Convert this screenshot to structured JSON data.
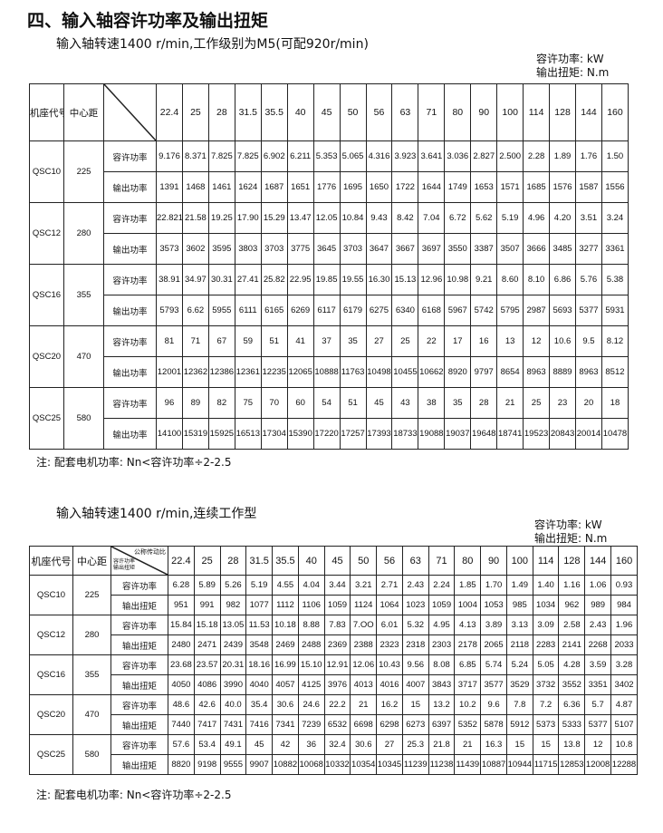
{
  "heading": "四、输入轴容许功率及输出扭矩",
  "table1": {
    "subtitle": "输入轴转速1400 r/min,工作级别为M5(可配920r/min)",
    "units": [
      "容许功率: kW",
      "输出扭矩: N.m"
    ],
    "col_model": "机座代号",
    "col_center": "中心距",
    "diag_top": "",
    "diag_bottom": [
      "",
      ""
    ],
    "ratios": [
      "22.4",
      "25",
      "28",
      "31.5",
      "35.5",
      "40",
      "45",
      "50",
      "56",
      "63",
      "71",
      "80",
      "90",
      "100",
      "114",
      "128",
      "144",
      "160"
    ],
    "rows": [
      {
        "model": "QSC10",
        "center": "225",
        "l1": "容许功率",
        "v1": [
          "9.176",
          "8.371",
          "7.825",
          "7.825",
          "6.902",
          "6.211",
          "5.353",
          "5.065",
          "4.316",
          "3.923",
          "3.641",
          "3.036",
          "2.827",
          "2.500",
          "2.28",
          "1.89",
          "1.76",
          "1.50"
        ],
        "l2": "输出功率",
        "v2": [
          "1391",
          "1468",
          "1461",
          "1624",
          "1687",
          "1651",
          "1776",
          "1695",
          "1650",
          "1722",
          "1644",
          "1749",
          "1653",
          "1571",
          "1685",
          "1576",
          "1587",
          "1556"
        ]
      },
      {
        "model": "QSC12",
        "center": "280",
        "l1": "容许功率",
        "v1": [
          "22.821",
          "21.58",
          "19.25",
          "17.90",
          "15.29",
          "13.47",
          "12.05",
          "10.84",
          "9.43",
          "8.42",
          "7.04",
          "6.72",
          "5.62",
          "5.19",
          "4.96",
          "4.20",
          "3.51",
          "3.24"
        ],
        "l2": "输出功率",
        "v2": [
          "3573",
          "3602",
          "3595",
          "3803",
          "3703",
          "3775",
          "3645",
          "3703",
          "3647",
          "3667",
          "3697",
          "3550",
          "3387",
          "3507",
          "3666",
          "3485",
          "3277",
          "3361"
        ]
      },
      {
        "model": "QSC16",
        "center": "355",
        "l1": "容许功率",
        "v1": [
          "38.91",
          "34.97",
          "30.31",
          "27.41",
          "25.82",
          "22.95",
          "19.85",
          "19.55",
          "16.30",
          "15.13",
          "12.96",
          "10.98",
          "9.21",
          "8.60",
          "8.10",
          "6.86",
          "5.76",
          "5.38"
        ],
        "l2": "输出功率",
        "v2": [
          "5793",
          "6.62",
          "5955",
          "6111",
          "6165",
          "6269",
          "6117",
          "6179",
          "6275",
          "6340",
          "6168",
          "5967",
          "5742",
          "5795",
          "2987",
          "5693",
          "5377",
          "5931"
        ]
      },
      {
        "model": "QSC20",
        "center": "470",
        "l1": "容许功率",
        "v1": [
          "81",
          "71",
          "67",
          "59",
          "51",
          "41",
          "37",
          "35",
          "27",
          "25",
          "22",
          "17",
          "16",
          "13",
          "12",
          "10.6",
          "9.5",
          "8.12"
        ],
        "l2": "输出功率",
        "v2": [
          "12001",
          "12362",
          "12386",
          "12361",
          "12235",
          "12065",
          "10888",
          "11763",
          "10498",
          "10455",
          "10662",
          "8920",
          "9797",
          "8654",
          "8963",
          "8889",
          "8963",
          "8512"
        ]
      },
      {
        "model": "QSC25",
        "center": "580",
        "l1": "容许功率",
        "v1": [
          "96",
          "89",
          "82",
          "75",
          "70",
          "60",
          "54",
          "51",
          "45",
          "43",
          "38",
          "35",
          "28",
          "21",
          "25",
          "23",
          "20",
          "18"
        ],
        "l2": "输出功率",
        "v2": [
          "14100",
          "15319",
          "15925",
          "16513",
          "17304",
          "15390",
          "17220",
          "17257",
          "17393",
          "18733",
          "19088",
          "19037",
          "19648",
          "18741",
          "19523",
          "20843",
          "20014",
          "10478"
        ]
      }
    ],
    "note": "注:  配套电机功率:  Nn<容许功率÷2-2.5"
  },
  "table2": {
    "subtitle": "输入轴转速1400 r/min,连续工作型",
    "units": [
      "容许功率: kW",
      "输出扭矩: N.m"
    ],
    "col_model": "机座代号",
    "col_center": "中心距",
    "diag_top": "公称传动比",
    "diag_bottom": [
      "容许功率",
      "输出扭矩"
    ],
    "ratios": [
      "22.4",
      "25",
      "28",
      "31.5",
      "35.5",
      "40",
      "45",
      "50",
      "56",
      "63",
      "71",
      "80",
      "90",
      "100",
      "114",
      "128",
      "144",
      "160"
    ],
    "rows": [
      {
        "model": "QSC10",
        "center": "225",
        "l1": "容许功率",
        "v1": [
          "6.28",
          "5.89",
          "5.26",
          "5.19",
          "4.55",
          "4.04",
          "3.44",
          "3.21",
          "2.71",
          "2.43",
          "2.24",
          "1.85",
          "1.70",
          "1.49",
          "1.40",
          "1.16",
          "1.06",
          "0.93"
        ],
        "l2": "输出扭矩",
        "v2": [
          "951",
          "991",
          "982",
          "1077",
          "1112",
          "1106",
          "1059",
          "1124",
          "1064",
          "1023",
          "1059",
          "1004",
          "1053",
          "985",
          "1034",
          "962",
          "989",
          "984"
        ]
      },
      {
        "model": "QSC12",
        "center": "280",
        "l1": "容许功率",
        "v1": [
          "15.84",
          "15.18",
          "13.05",
          "11.53",
          "10.18",
          "8.88",
          "7.83",
          "7.OO",
          "6.01",
          "5.32",
          "4.95",
          "4.13",
          "3.89",
          "3.13",
          "3.09",
          "2.58",
          "2.43",
          "1.96"
        ],
        "l2": "输出扭矩",
        "v2": [
          "2480",
          "2471",
          "2439",
          "3548",
          "2469",
          "2488",
          "2369",
          "2388",
          "2323",
          "2318",
          "2303",
          "2178",
          "2065",
          "2118",
          "2283",
          "2141",
          "2268",
          "2033"
        ]
      },
      {
        "model": "QSC16",
        "center": "355",
        "l1": "容许功率",
        "v1": [
          "23.68",
          "23.57",
          "20.31",
          "18.16",
          "16.99",
          "15.10",
          "12.91",
          "12.06",
          "10.43",
          "9.56",
          "8.08",
          "6.85",
          "5.74",
          "5.24",
          "5.05",
          "4.28",
          "3.59",
          "3.28"
        ],
        "l2": "输出扭矩",
        "v2": [
          "4050",
          "4086",
          "3990",
          "4040",
          "4057",
          "4125",
          "3976",
          "4013",
          "4016",
          "4007",
          "3843",
          "3717",
          "3577",
          "3529",
          "3732",
          "3552",
          "3351",
          "3402"
        ]
      },
      {
        "model": "QSC20",
        "center": "470",
        "l1": "容许功率",
        "v1": [
          "48.6",
          "42.6",
          "40.0",
          "35.4",
          "30.6",
          "24.6",
          "22.2",
          "21",
          "16.2",
          "15",
          "13.2",
          "10.2",
          "9.6",
          "7.8",
          "7.2",
          "6.36",
          "5.7",
          "4.87"
        ],
        "l2": "输出扭矩",
        "v2": [
          "7440",
          "7417",
          "7431",
          "7416",
          "7341",
          "7239",
          "6532",
          "6698",
          "6298",
          "6273",
          "6397",
          "5352",
          "5878",
          "5912",
          "5373",
          "5333",
          "5377",
          "5107"
        ]
      },
      {
        "model": "QSC25",
        "center": "580",
        "l1": "容许功率",
        "v1": [
          "57.6",
          "53.4",
          "49.1",
          "45",
          "42",
          "36",
          "32.4",
          "30.6",
          "27",
          "25.3",
          "21.8",
          "21",
          "16.3",
          "15",
          "15",
          "13.8",
          "12",
          "10.8"
        ],
        "l2": "输出扭矩",
        "v2": [
          "8820",
          "9198",
          "9555",
          "9907",
          "10882",
          "10068",
          "10332",
          "10354",
          "10345",
          "11239",
          "11238",
          "11439",
          "10887",
          "10944",
          "11715",
          "12853",
          "12008",
          "12288"
        ]
      }
    ],
    "note": "注:  配套电机功率:  Nn<容许功率÷2-2.5"
  }
}
